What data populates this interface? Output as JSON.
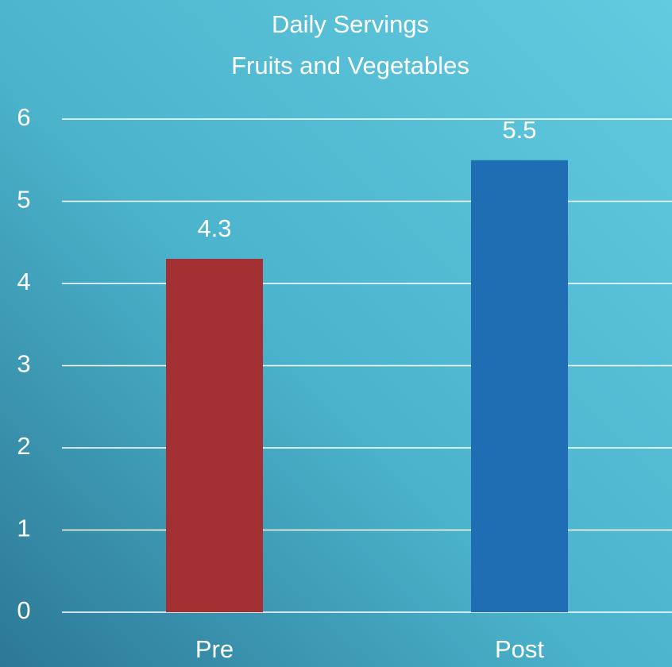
{
  "chart_data": {
    "type": "bar",
    "title": "Daily Servings",
    "subtitle": "Fruits and Vegetables",
    "categories": [
      "Pre",
      "Post"
    ],
    "values": [
      4.3,
      5.5
    ],
    "colors": [
      "#a33033",
      "#1f6db3"
    ],
    "ylim": [
      0,
      6
    ],
    "yticks": [
      0,
      1,
      2,
      3,
      4,
      5,
      6
    ],
    "grid": true
  }
}
